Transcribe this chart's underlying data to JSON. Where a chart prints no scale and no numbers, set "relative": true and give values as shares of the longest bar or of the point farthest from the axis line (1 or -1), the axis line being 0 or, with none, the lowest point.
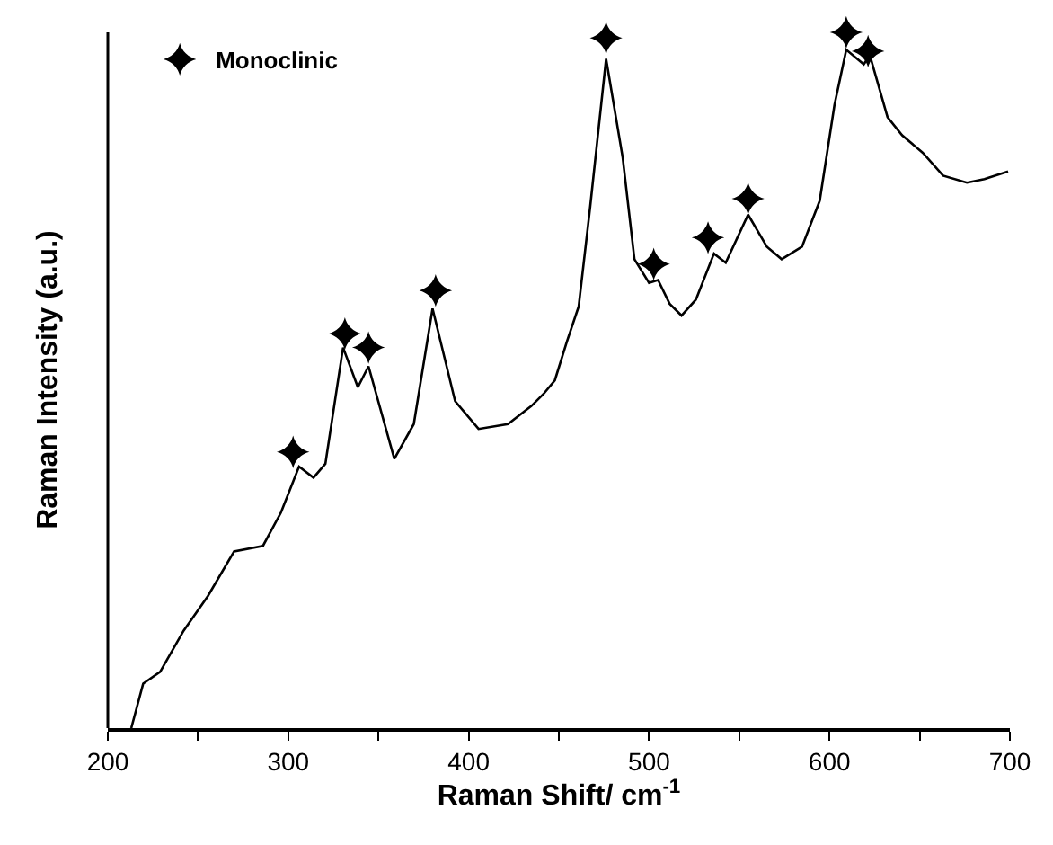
{
  "chart_data": {
    "type": "line",
    "relative": true,
    "xlabel": "Raman Shift/ cm$^{-1}$",
    "ylabel": "Raman Intensity (a.u.)",
    "xlim": [
      200,
      700
    ],
    "xticks": [
      200,
      {
        "value": 250,
        "label": null
      },
      300,
      {
        "value": 350,
        "label": null
      },
      400,
      {
        "value": 450,
        "label": null
      },
      500,
      {
        "value": 550,
        "label": null
      },
      600,
      {
        "value": 650,
        "label": null
      },
      700
    ],
    "legend": "top left",
    "tick_labels": "x",
    "series": [
      {
        "type": "line",
        "color": "#000000",
        "marker": "none",
        "x": [
          213,
          219.6,
          229,
          242,
          255.5,
          270,
          286,
          296,
          306,
          314,
          320.6,
          330.4,
          338.6,
          344.5,
          358.8,
          369.6,
          380,
          392.5,
          405.5,
          421.8,
          434.8,
          441.4,
          447.8,
          454.4,
          461,
          467.4,
          476.2,
          485.4,
          491.9,
          500,
          505,
          511.4,
          518,
          526,
          536,
          542.5,
          554.9,
          565.3,
          573.5,
          584.8,
          594.6,
          602.8,
          609.3,
          619,
          622.4,
          632.2,
          640.3,
          651.7,
          663,
          676.2,
          685.9,
          699
        ],
        "values": [
          0,
          0.064,
          0.081,
          0.14,
          0.19,
          0.254,
          0.262,
          0.31,
          0.376,
          0.36,
          0.38,
          0.547,
          0.49,
          0.52,
          0.387,
          0.437,
          0.603,
          0.47,
          0.43,
          0.437,
          0.463,
          0.48,
          0.5,
          0.555,
          0.606,
          0.75,
          0.962,
          0.82,
          0.674,
          0.64,
          0.644,
          0.61,
          0.593,
          0.616,
          0.682,
          0.669,
          0.738,
          0.692,
          0.674,
          0.692,
          0.758,
          0.896,
          0.975,
          0.954,
          0.967,
          0.878,
          0.852,
          0.827,
          0.794,
          0.784,
          0.789,
          0.8
        ]
      },
      {
        "type": "scatter",
        "name": "Monoclinic",
        "color": "#000000",
        "marker": "star",
        "x": [
          302.7,
          331.4,
          344.5,
          381.7,
          476.2,
          502.6,
          532.7,
          554.9,
          609.3,
          621.4
        ],
        "values": [
          0.397,
          0.567,
          0.547,
          0.629,
          0.992,
          0.667,
          0.705,
          0.761,
          1,
          0.973
        ]
      }
    ]
  }
}
